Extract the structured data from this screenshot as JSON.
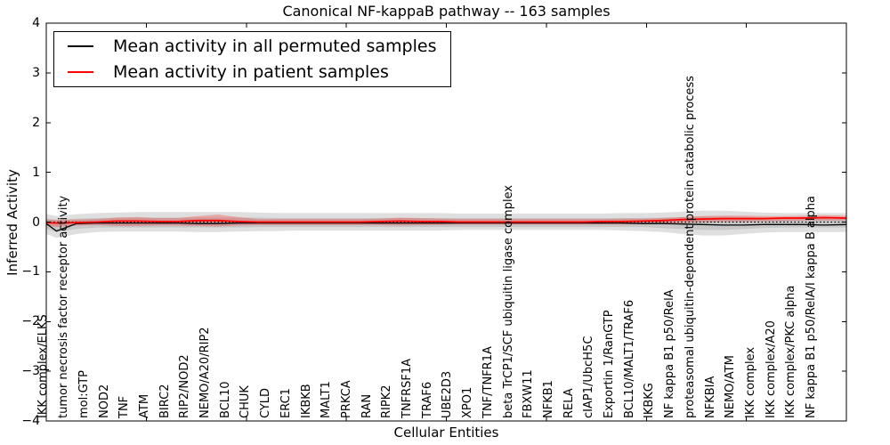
{
  "chart_data": {
    "type": "line",
    "title": "Canonical NF-kappaB pathway -- 163 samples",
    "xlabel": "Cellular Entities",
    "ylabel": "Inferred Activity",
    "ylim": [
      -4,
      4
    ],
    "yticks": [
      4,
      3,
      2,
      1,
      0,
      -1,
      -2,
      -3,
      -4
    ],
    "ytick_labels": [
      "4",
      "3",
      "2",
      "1",
      "0",
      "−1",
      "−2",
      "−3",
      "−4"
    ],
    "x_major_tick_count": 9,
    "grid": false,
    "legend_position": "upper-left",
    "zero_reference_line": {
      "y": 0,
      "style": "dotted",
      "color": "#000000"
    },
    "categories": [
      "IKK complex/ELKS",
      "tumor necrosis factor receptor activity",
      "mol:GTP",
      "NOD2",
      "TNF",
      "ATM",
      "BIRC2",
      "RIP2/NOD2",
      "NEMO/A20/RIP2",
      "BCL10",
      "CHUK",
      "CYLD",
      "ERC1",
      "IKBKB",
      "MALT1",
      "PRKCA",
      "RAN",
      "RIPK2",
      "TNFRSF1A",
      "TRAF6",
      "UBE2D3",
      "XPO1",
      "TNF/TNFR1A",
      "beta TrCP1/SCF ubiquitin ligase complex",
      "FBXW11",
      "NFKB1",
      "RELA",
      "cIAP1/UbcH5C",
      "Exportin 1/RanGTP",
      "BCL10/MALT1/TRAF6",
      "IKBKG",
      "NF kappa B1 p50/RelA",
      "proteasomal ubiquitin-dependent protein catabolic process",
      "NFKBIA",
      "NEMO/ATM",
      "IKK complex",
      "IKK complex/A20",
      "IKK complex/PKC alpha",
      "NF kappa B1 p50/RelA/I kappa B alpha"
    ],
    "series": [
      {
        "name": "Mean activity in all permuted samples",
        "color": "#000000",
        "line_width": 1.3,
        "values": [
          -0.18,
          -0.03,
          -0.02,
          -0.02,
          -0.02,
          -0.02,
          -0.02,
          -0.03,
          -0.03,
          -0.02,
          -0.02,
          -0.02,
          -0.02,
          -0.02,
          -0.02,
          -0.02,
          -0.02,
          -0.02,
          -0.02,
          -0.02,
          -0.02,
          -0.02,
          -0.02,
          -0.02,
          -0.02,
          -0.02,
          -0.02,
          -0.02,
          -0.02,
          -0.03,
          -0.03,
          -0.04,
          -0.05,
          -0.06,
          -0.06,
          -0.05,
          -0.05,
          -0.05,
          -0.06
        ]
      },
      {
        "name": "Mean activity in patient samples",
        "color": "#ff0000",
        "line_width": 1.8,
        "values": [
          -0.02,
          -0.01,
          0,
          0.02,
          0.02,
          0.01,
          0.01,
          0.03,
          0.03,
          0.01,
          0,
          0,
          0,
          0,
          0,
          0,
          0.01,
          0.02,
          0.01,
          0.01,
          0,
          0,
          0,
          0,
          0,
          0,
          0,
          0.01,
          0.01,
          0.02,
          0.03,
          0.05,
          0.06,
          0.07,
          0.07,
          0.07,
          0.08,
          0.08,
          0.09
        ]
      }
    ],
    "bands": [
      {
        "name": "permuted-outer-confidence-band",
        "color": "#808080",
        "opacity": 0.25,
        "upper": [
          0.12,
          0.16,
          0.18,
          0.19,
          0.2,
          0.2,
          0.2,
          0.2,
          0.2,
          0.2,
          0.19,
          0.18,
          0.18,
          0.18,
          0.18,
          0.18,
          0.18,
          0.18,
          0.18,
          0.18,
          0.17,
          0.17,
          0.17,
          0.17,
          0.17,
          0.17,
          0.17,
          0.17,
          0.18,
          0.18,
          0.19,
          0.21,
          0.23,
          0.23,
          0.21,
          0.19,
          0.18,
          0.18,
          0.18
        ],
        "lower": [
          -0.32,
          -0.24,
          -0.2,
          -0.19,
          -0.19,
          -0.19,
          -0.19,
          -0.2,
          -0.2,
          -0.19,
          -0.18,
          -0.18,
          -0.17,
          -0.17,
          -0.17,
          -0.17,
          -0.17,
          -0.17,
          -0.17,
          -0.17,
          -0.16,
          -0.16,
          -0.16,
          -0.16,
          -0.16,
          -0.16,
          -0.16,
          -0.16,
          -0.17,
          -0.18,
          -0.2,
          -0.24,
          -0.27,
          -0.27,
          -0.24,
          -0.21,
          -0.2,
          -0.2,
          -0.2
        ]
      },
      {
        "name": "permuted-inner-confidence-band",
        "color": "#808080",
        "opacity": 0.25,
        "upper": [
          0.05,
          0.07,
          0.08,
          0.09,
          0.09,
          0.09,
          0.09,
          0.09,
          0.09,
          0.09,
          0.09,
          0.08,
          0.08,
          0.08,
          0.08,
          0.08,
          0.08,
          0.08,
          0.08,
          0.08,
          0.08,
          0.08,
          0.08,
          0.08,
          0.08,
          0.08,
          0.08,
          0.08,
          0.08,
          0.08,
          0.09,
          0.1,
          0.11,
          0.11,
          0.1,
          0.09,
          0.08,
          0.08,
          0.08
        ],
        "lower": [
          -0.2,
          -0.14,
          -0.11,
          -0.11,
          -0.11,
          -0.11,
          -0.11,
          -0.11,
          -0.11,
          -0.11,
          -0.1,
          -0.1,
          -0.1,
          -0.1,
          -0.1,
          -0.1,
          -0.1,
          -0.1,
          -0.1,
          -0.1,
          -0.1,
          -0.1,
          -0.1,
          -0.1,
          -0.1,
          -0.1,
          -0.1,
          -0.1,
          -0.1,
          -0.1,
          -0.12,
          -0.14,
          -0.16,
          -0.16,
          -0.14,
          -0.12,
          -0.11,
          -0.11,
          -0.11
        ]
      },
      {
        "name": "patient-confidence-band",
        "color": "#ff0000",
        "opacity": 0.25,
        "upper": [
          0.04,
          0.05,
          0.06,
          0.09,
          0.1,
          0.08,
          0.08,
          0.12,
          0.15,
          0.1,
          0.06,
          0.06,
          0.06,
          0.06,
          0.06,
          0.06,
          0.07,
          0.09,
          0.08,
          0.07,
          0.06,
          0.06,
          0.06,
          0.06,
          0.06,
          0.06,
          0.06,
          0.06,
          0.07,
          0.07,
          0.08,
          0.1,
          0.12,
          0.13,
          0.13,
          0.12,
          0.12,
          0.13,
          0.14
        ],
        "lower": [
          -0.1,
          -0.07,
          -0.06,
          -0.08,
          -0.08,
          -0.07,
          -0.07,
          -0.08,
          -0.09,
          -0.07,
          -0.06,
          -0.06,
          -0.06,
          -0.06,
          -0.06,
          -0.06,
          -0.06,
          -0.07,
          -0.06,
          -0.06,
          -0.05,
          -0.05,
          -0.05,
          -0.05,
          -0.05,
          -0.05,
          -0.05,
          -0.05,
          -0.05,
          -0.04,
          -0.03,
          -0.02,
          0,
          0.01,
          0.01,
          0.02,
          0.02,
          0.03,
          0.03
        ]
      }
    ]
  }
}
